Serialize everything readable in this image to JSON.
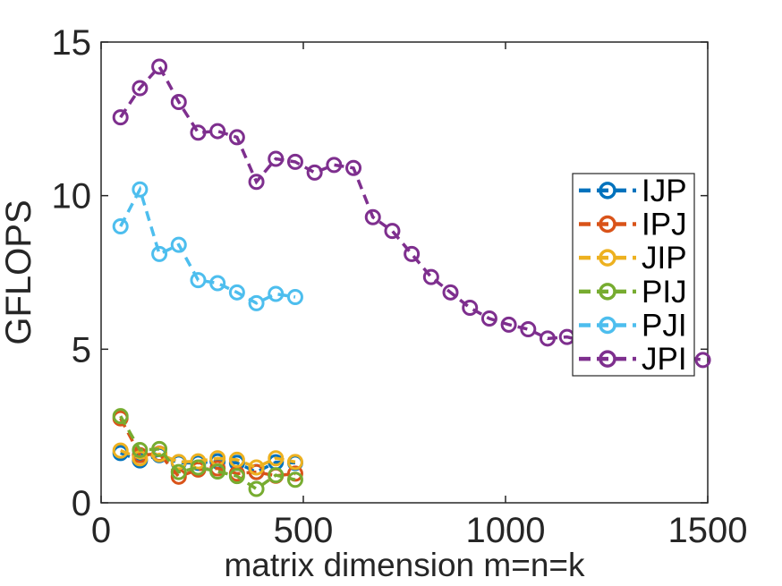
{
  "figure": {
    "background": "#ffffff",
    "axis_color": "#262626",
    "legend_text_color": "#000000"
  },
  "chart_data": {
    "type": "line",
    "title": "",
    "xlabel": "matrix dimension m=n=k",
    "ylabel": "GFLOPS",
    "xlim": [
      0,
      1500
    ],
    "ylim": [
      0,
      15
    ],
    "xticks": [
      0,
      500,
      1000,
      1500
    ],
    "yticks": [
      0,
      5,
      10,
      15
    ],
    "grid": false,
    "line_style": "dashed",
    "marker": "open-circle",
    "legend_position": "right-inside",
    "series": [
      {
        "name": "IJP",
        "color": "#0072BD",
        "x": [
          48,
          96,
          144,
          192,
          240,
          288,
          336,
          384,
          432,
          480
        ],
        "y": [
          1.62,
          1.38,
          1.55,
          1.3,
          1.3,
          1.35,
          1.3,
          1.0,
          1.32,
          1.3
        ]
      },
      {
        "name": "IPJ",
        "color": "#D95319",
        "x": [
          48,
          96,
          144,
          192,
          240,
          288,
          336,
          384,
          432,
          480
        ],
        "y": [
          2.75,
          1.55,
          1.6,
          0.85,
          1.08,
          1.12,
          0.95,
          1.0,
          0.88,
          0.95
        ]
      },
      {
        "name": "JIP",
        "color": "#EDB120",
        "x": [
          48,
          96,
          144,
          192,
          240,
          288,
          336,
          384,
          432,
          480
        ],
        "y": [
          1.7,
          1.45,
          1.58,
          1.33,
          1.35,
          1.45,
          1.4,
          1.15,
          1.45,
          1.33
        ]
      },
      {
        "name": "PIJ",
        "color": "#77AC30",
        "x": [
          48,
          96,
          144,
          192,
          240,
          288,
          336,
          384,
          432,
          480
        ],
        "y": [
          2.82,
          1.72,
          1.75,
          1.0,
          1.15,
          1.02,
          0.87,
          0.45,
          0.9,
          0.75
        ]
      },
      {
        "name": "PJI",
        "color": "#4DBEEE",
        "x": [
          48,
          96,
          144,
          192,
          240,
          288,
          336,
          384,
          432,
          480
        ],
        "y": [
          9.0,
          10.2,
          8.1,
          8.4,
          7.25,
          7.15,
          6.85,
          6.5,
          6.8,
          6.7
        ]
      },
      {
        "name": "JPI",
        "color": "#7E2F8E",
        "x": [
          48,
          96,
          144,
          192,
          240,
          288,
          336,
          384,
          432,
          480,
          528,
          576,
          624,
          672,
          720,
          768,
          816,
          864,
          912,
          960,
          1008,
          1056,
          1104,
          1152,
          1200,
          1248,
          1296,
          1344,
          1392,
          1440,
          1488
        ],
        "y": [
          12.55,
          13.5,
          14.2,
          13.05,
          12.05,
          12.1,
          11.9,
          10.45,
          11.2,
          11.1,
          10.75,
          11.0,
          10.9,
          9.3,
          8.85,
          8.1,
          7.35,
          6.85,
          6.35,
          6.0,
          5.8,
          5.65,
          5.35,
          5.4,
          5.25,
          5.15,
          5.05,
          4.95,
          4.85,
          4.75,
          4.65
        ]
      }
    ]
  }
}
